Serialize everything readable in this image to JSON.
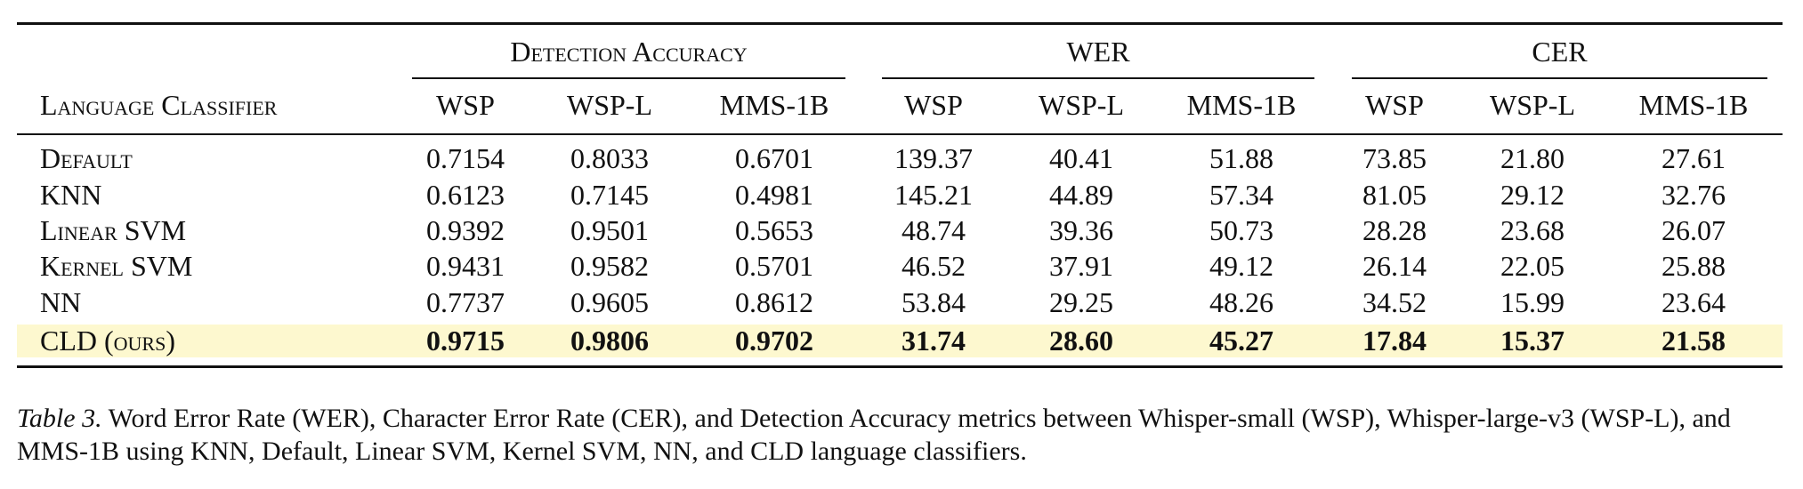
{
  "table": {
    "header_label": "Language Classifier",
    "groups": [
      "Detection Accuracy",
      "WER",
      "CER"
    ],
    "columns": [
      "WSP",
      "WSP-L",
      "MMS-1B",
      "WSP",
      "WSP-L",
      "MMS-1B",
      "WSP",
      "WSP-L",
      "MMS-1B"
    ],
    "rows": [
      {
        "label": "Default",
        "values": [
          "0.7154",
          "0.8033",
          "0.6701",
          "139.37",
          "40.41",
          "51.88",
          "73.85",
          "21.80",
          "27.61"
        ]
      },
      {
        "label": "KNN",
        "values": [
          "0.6123",
          "0.7145",
          "0.4981",
          "145.21",
          "44.89",
          "57.34",
          "81.05",
          "29.12",
          "32.76"
        ]
      },
      {
        "label": "Linear SVM",
        "values": [
          "0.9392",
          "0.9501",
          "0.5653",
          "48.74",
          "39.36",
          "50.73",
          "28.28",
          "23.68",
          "26.07"
        ]
      },
      {
        "label": "Kernel SVM",
        "values": [
          "0.9431",
          "0.9582",
          "0.5701",
          "46.52",
          "37.91",
          "49.12",
          "26.14",
          "22.05",
          "25.88"
        ]
      },
      {
        "label": "NN",
        "values": [
          "0.7737",
          "0.9605",
          "0.8612",
          "53.84",
          "29.25",
          "48.26",
          "34.52",
          "15.99",
          "23.64"
        ]
      },
      {
        "label": "CLD (ours)",
        "values": [
          "0.9715",
          "0.9806",
          "0.9702",
          "31.74",
          "28.60",
          "45.27",
          "17.84",
          "15.37",
          "21.58"
        ]
      }
    ]
  },
  "caption": {
    "label": "Table 3.",
    "text": "Word Error Rate (WER), Character Error Rate (CER), and Detection Accuracy metrics between Whisper-small (WSP), Whisper-large-v3 (WSP-L), and MMS-1B using KNN, Default, Linear SVM, Kernel SVM, NN, and CLD language classifiers."
  }
}
